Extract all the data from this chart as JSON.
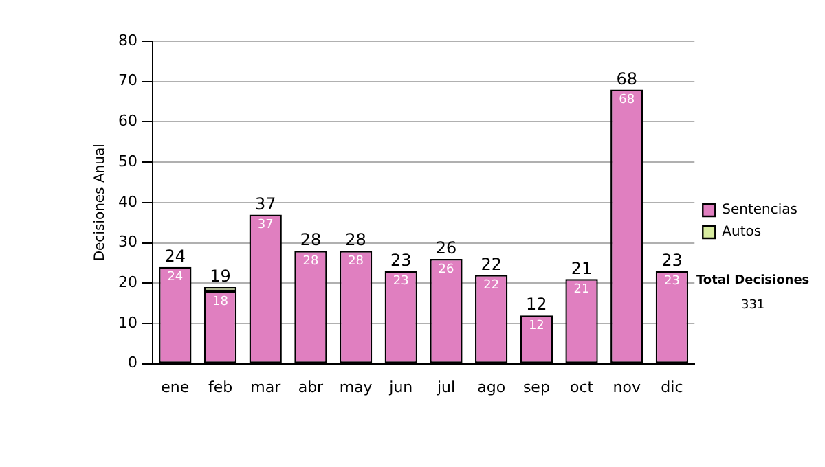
{
  "chart_data": {
    "type": "bar",
    "stacked": true,
    "ylabel": "Decisiones Anual",
    "categories": [
      "ene",
      "feb",
      "mar",
      "abr",
      "may",
      "jun",
      "jul",
      "ago",
      "sep",
      "oct",
      "nov",
      "dic"
    ],
    "series": [
      {
        "name": "Sentencias",
        "color": "#e07fc0",
        "values": [
          24,
          18,
          37,
          28,
          28,
          23,
          26,
          22,
          12,
          21,
          68,
          23
        ],
        "value_labels": [
          "24",
          "18",
          "37",
          "28",
          "28",
          "23",
          "26",
          "22",
          "12",
          "21",
          "68",
          "23"
        ]
      },
      {
        "name": "Autos",
        "color": "#d8eca0",
        "values": [
          0,
          1,
          0,
          0,
          0,
          0,
          0,
          0,
          0,
          0,
          0,
          0
        ]
      }
    ],
    "totals": [
      "24",
      "19",
      "37",
      "28",
      "28",
      "23",
      "26",
      "22",
      "12",
      "21",
      "68",
      "23"
    ],
    "ylim": [
      0,
      80
    ],
    "yticks": [
      0,
      10,
      20,
      30,
      40,
      50,
      60,
      70,
      80
    ],
    "grid": "y",
    "legend": "right",
    "annotations": [
      "Total Decisiones",
      "331"
    ]
  }
}
